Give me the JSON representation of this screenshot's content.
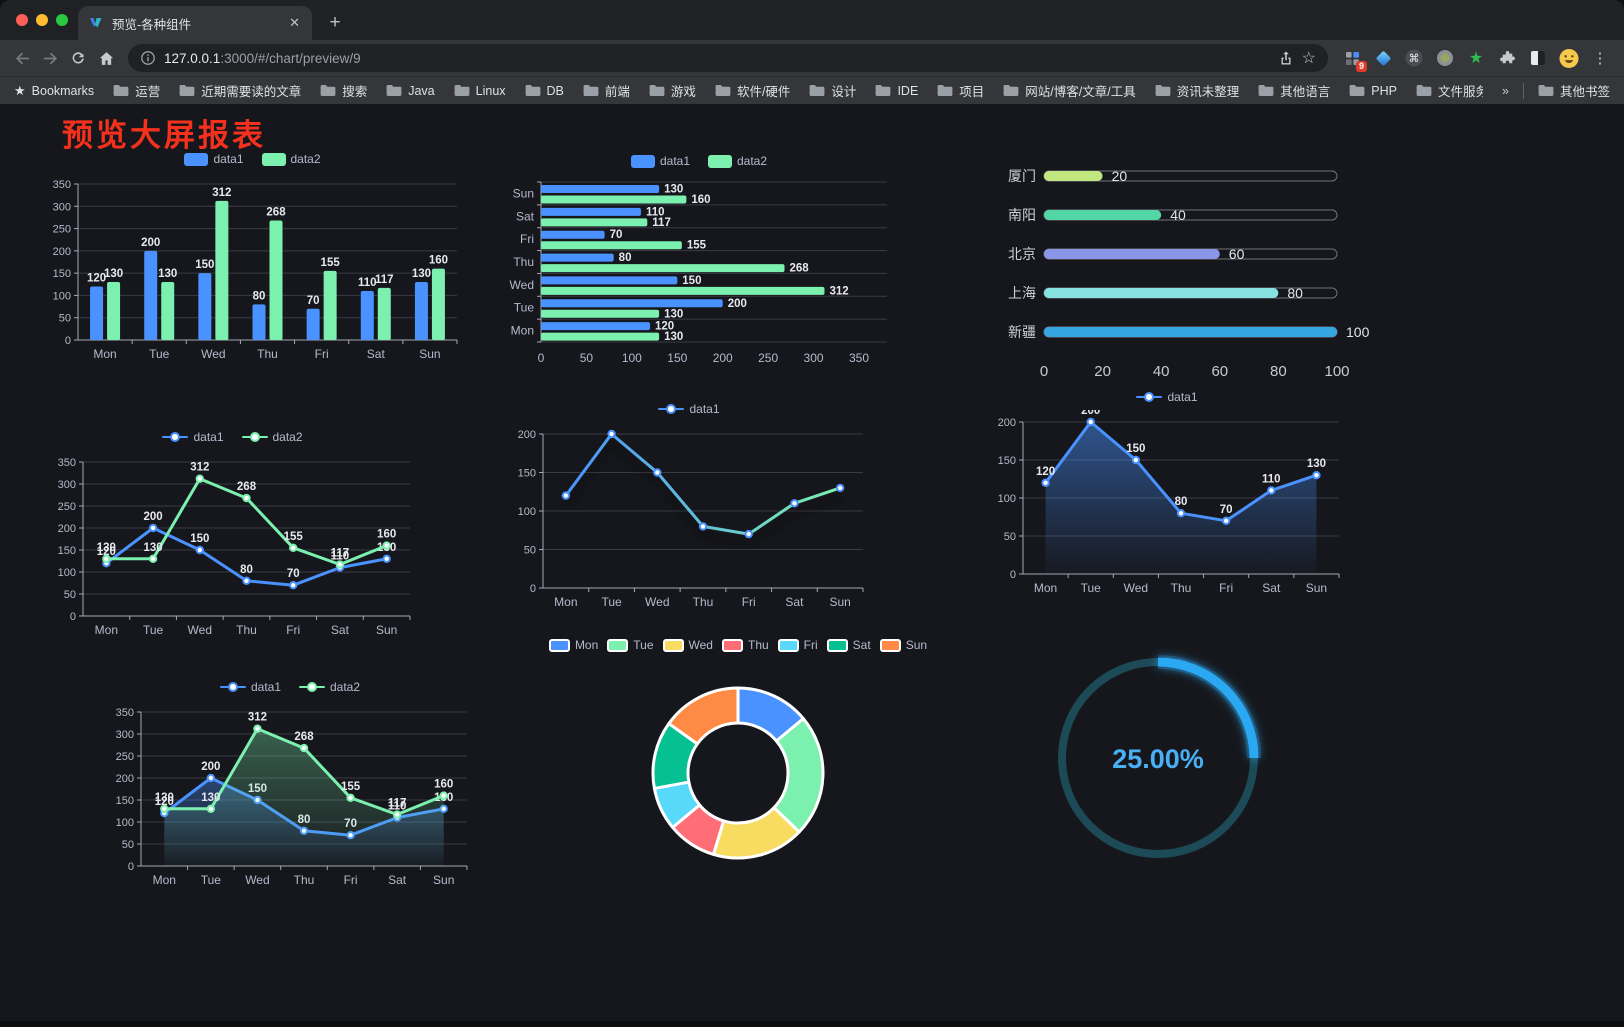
{
  "browser": {
    "tab": {
      "title": "预览-各种组件",
      "close_glyph": "✕"
    },
    "new_tab_glyph": "+",
    "url": {
      "host": "127.0.0.1",
      "rest": ":3000/#/chart/preview/9"
    },
    "actions": {
      "extension_badge": "9",
      "bookmark_star_glyph": "☆",
      "menu_glyph": "⋮"
    },
    "bookmarks_label": "Bookmarks",
    "bookmarks": [
      "运营",
      "近期需要读的文章",
      "搜索",
      "Java",
      "Linux",
      "DB",
      "前端",
      "游戏",
      "软件/硬件",
      "设计",
      "IDE",
      "项目",
      "网站/博客/文章/工具",
      "资讯未整理",
      "其他语言",
      "PHP",
      "文件服务器"
    ],
    "bookmarks_overflow_glyph": "»",
    "other_bookmarks_label": "其他书签"
  },
  "page": {
    "title": "预览大屏报表",
    "title_color": "#f5311e",
    "background": "#16171c"
  },
  "chart_data": [
    {
      "name": "grouped-bar",
      "type": "bar",
      "legend_position": "top",
      "grid": true,
      "value_labels": true,
      "categories": [
        "Mon",
        "Tue",
        "Wed",
        "Thu",
        "Fri",
        "Sat",
        "Sun"
      ],
      "series": [
        {
          "name": "data1",
          "color": "#4992ff",
          "values": [
            120,
            200,
            150,
            80,
            70,
            110,
            130
          ]
        },
        {
          "name": "data2",
          "color": "#7cf0ae",
          "values": [
            130,
            130,
            312,
            268,
            155,
            117,
            160
          ]
        }
      ],
      "ylim": [
        0,
        350
      ],
      "ytick_step": 50
    },
    {
      "name": "horizontal-grouped-bar",
      "type": "bar",
      "orientation": "horizontal",
      "legend_position": "top",
      "value_labels": true,
      "categories_top_to_bottom": [
        "Sun",
        "Sat",
        "Fri",
        "Thu",
        "Wed",
        "Tue",
        "Mon"
      ],
      "series": [
        {
          "name": "data1",
          "color": "#4992ff",
          "values": [
            130,
            110,
            70,
            80,
            150,
            200,
            120
          ]
        },
        {
          "name": "data2",
          "color": "#7cf0ae",
          "values": [
            160,
            117,
            155,
            268,
            312,
            130,
            130
          ]
        }
      ],
      "xlim": [
        0,
        350
      ],
      "xtick_step": 50
    },
    {
      "name": "city-progress-bars",
      "type": "bar",
      "subtype": "progress",
      "rows": [
        {
          "label": "厦门",
          "value": 20,
          "color": "#c0e780"
        },
        {
          "label": "南阳",
          "value": 40,
          "color": "#52d6a6"
        },
        {
          "label": "北京",
          "value": 60,
          "color": "#8a96e8"
        },
        {
          "label": "上海",
          "value": 80,
          "color": "#86e3e0"
        },
        {
          "label": "新疆",
          "value": 100,
          "color": "#36a6e0"
        }
      ],
      "xlim": [
        0,
        100
      ],
      "xticks": [
        0,
        20,
        40,
        60,
        80,
        100
      ]
    },
    {
      "name": "dual-line",
      "type": "line",
      "legend_position": "top",
      "value_labels": true,
      "categories": [
        "Mon",
        "Tue",
        "Wed",
        "Thu",
        "Fri",
        "Sat",
        "Sun"
      ],
      "series": [
        {
          "name": "data1",
          "color": "#4992ff",
          "values": [
            120,
            200,
            150,
            80,
            70,
            110,
            130
          ]
        },
        {
          "name": "data2",
          "color": "#7cf0ae",
          "values": [
            130,
            130,
            312,
            268,
            155,
            117,
            160
          ]
        }
      ],
      "ylim": [
        0,
        350
      ],
      "ytick_step": 50
    },
    {
      "name": "gradient-line",
      "type": "line",
      "legend_position": "top",
      "value_labels": false,
      "shadow": true,
      "categories": [
        "Mon",
        "Tue",
        "Wed",
        "Thu",
        "Fri",
        "Sat",
        "Sun"
      ],
      "series": [
        {
          "name": "data1",
          "gradient": [
            "#4992ff",
            "#7cf0ae"
          ],
          "values": [
            120,
            200,
            150,
            80,
            70,
            110,
            130
          ]
        }
      ],
      "ylim": [
        0,
        200
      ],
      "ytick_step": 50
    },
    {
      "name": "single-area",
      "type": "area",
      "legend_position": "top",
      "value_labels": true,
      "categories": [
        "Mon",
        "Tue",
        "Wed",
        "Thu",
        "Fri",
        "Sat",
        "Sun"
      ],
      "series": [
        {
          "name": "data1",
          "color": "#4992ff",
          "area": true,
          "area_opacity": 0.5,
          "values": [
            120,
            200,
            150,
            80,
            70,
            110,
            130
          ]
        }
      ],
      "ylim": [
        0,
        200
      ],
      "ytick_step": 50
    },
    {
      "name": "dual-area",
      "type": "area",
      "legend_position": "top",
      "value_labels": true,
      "categories": [
        "Mon",
        "Tue",
        "Wed",
        "Thu",
        "Fri",
        "Sat",
        "Sun"
      ],
      "series": [
        {
          "name": "data1",
          "color": "#4992ff",
          "area": true,
          "area_opacity": 0.38,
          "values": [
            120,
            200,
            150,
            80,
            70,
            110,
            130
          ]
        },
        {
          "name": "data2",
          "color": "#7cf0ae",
          "area": true,
          "area_opacity": 0.34,
          "values": [
            130,
            130,
            312,
            268,
            155,
            117,
            160
          ]
        }
      ],
      "ylim": [
        0,
        350
      ],
      "ytick_step": 50
    },
    {
      "name": "weekday-donut",
      "type": "pie",
      "donut": true,
      "legend_position": "top",
      "labels": [
        "Mon",
        "Tue",
        "Wed",
        "Thu",
        "Fri",
        "Sat",
        "Sun"
      ],
      "values": [
        120,
        200,
        150,
        80,
        70,
        110,
        130
      ],
      "colors": [
        "#4992ff",
        "#7cf0ae",
        "#f8dc62",
        "#ff6e76",
        "#58d9f9",
        "#05c091",
        "#ff8a45"
      ]
    },
    {
      "name": "percentage-gauge",
      "type": "gauge",
      "value_percent": 25,
      "display": "25.00%",
      "track_color": "#1c4a57",
      "progress_color": "#2aa9f2",
      "text_color": "#49b0f5"
    }
  ]
}
